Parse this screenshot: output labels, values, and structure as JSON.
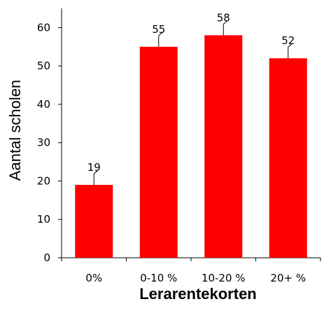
{
  "chart_data": {
    "type": "bar",
    "categories": [
      "0%",
      "0-10 %",
      "10-20 %",
      "20+ %"
    ],
    "values": [
      19,
      55,
      58,
      52
    ],
    "data_labels": [
      "19",
      "55",
      "58",
      "52"
    ],
    "title": "",
    "xlabel": "Lerarentekorten",
    "ylabel": "Aantal scholen",
    "ylim": [
      0,
      65
    ],
    "yticks": [
      0,
      10,
      20,
      30,
      40,
      50,
      60
    ],
    "grid": false,
    "bar_color": "#ff0000"
  }
}
